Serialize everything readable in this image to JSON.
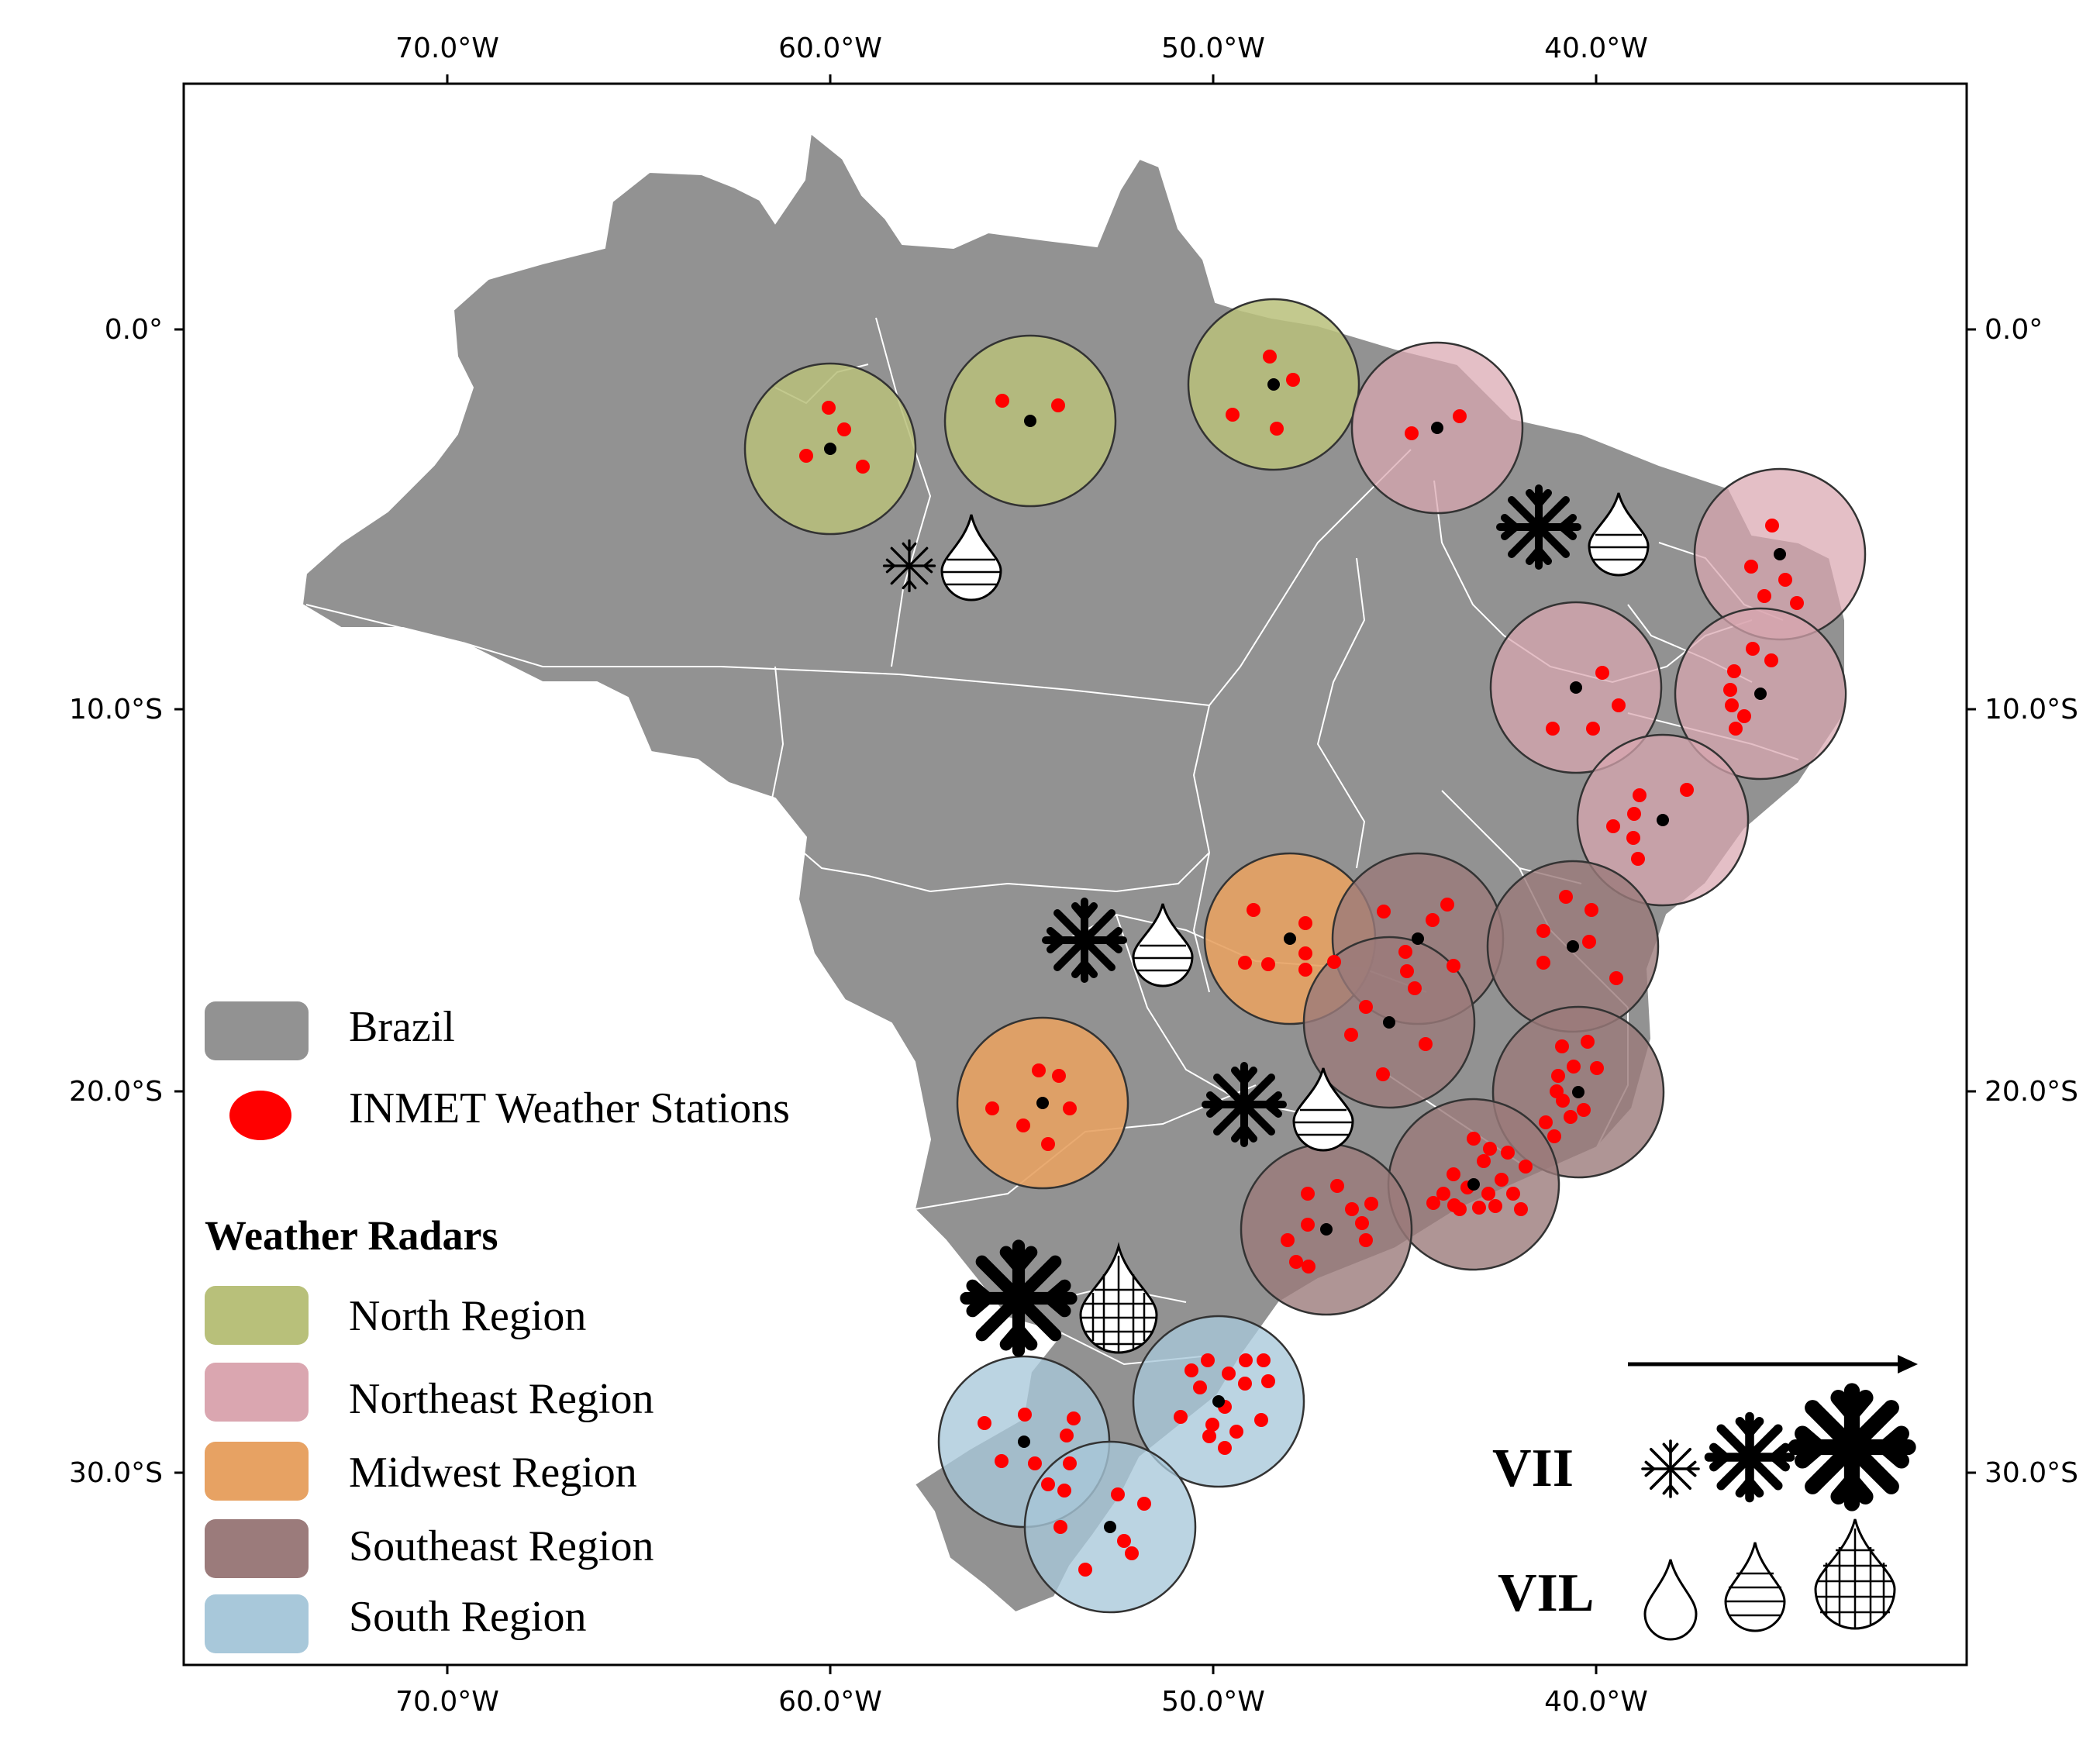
{
  "map": {
    "axes": {
      "top_ticks": [
        "70.0°W",
        "60.0°W",
        "50.0°W",
        "40.0°W"
      ],
      "bottom_ticks": [
        "70.0°W",
        "60.0°W",
        "50.0°W",
        "40.0°W"
      ],
      "left_ticks": [
        "0.0°",
        "10.0°S",
        "20.0°S",
        "30.0°S"
      ],
      "right_ticks": [
        "0.0°",
        "10.0°S",
        "20.0°S",
        "30.0°S"
      ]
    },
    "colors": {
      "brazil": "#929292",
      "station": "#ff0000",
      "north": "#b8c07a",
      "northeast": "#daa6b0",
      "midwest": "#e7a263",
      "southeast": "#9b7b7b",
      "south": "#a8c8da"
    }
  },
  "legend": {
    "brazil": "Brazil",
    "stations": "INMET Weather Stations",
    "radars_title": "Weather Radars",
    "regions": [
      {
        "key": "north",
        "label": "North Region",
        "color": "#b8c07a"
      },
      {
        "key": "northeast",
        "label": "Northeast Region",
        "color": "#daa6b0"
      },
      {
        "key": "midwest",
        "label": "Midwest Region",
        "color": "#e7a263"
      },
      {
        "key": "southeast",
        "label": "Southeast Region",
        "color": "#9b7b7b"
      },
      {
        "key": "south",
        "label": "South Region",
        "color": "#a8c8da"
      }
    ]
  },
  "intensity_scale": {
    "vii_label": "VII",
    "vil_label": "VIL",
    "vii_icons": [
      "snowflake-small-icon",
      "snowflake-medium-icon",
      "snowflake-large-icon"
    ],
    "vil_icons": [
      "drop-plain-icon",
      "drop-horizontal-lines-icon",
      "drop-grid-icon"
    ]
  }
}
